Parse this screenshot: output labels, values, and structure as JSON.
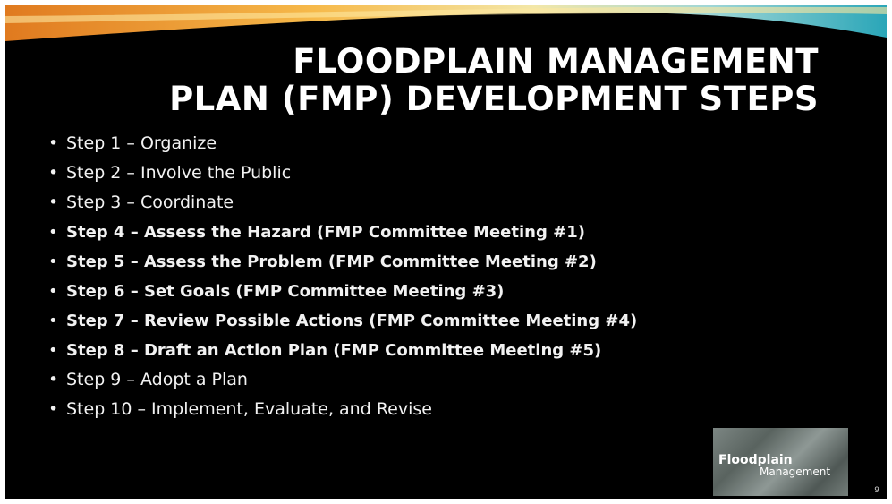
{
  "slide": {
    "title": [
      "FLOODPLAIN MANAGEMENT",
      "PLAN (FMP) DEVELOPMENT STEPS"
    ],
    "bullets": [
      {
        "text": "Step 1 – Organize",
        "bold": false
      },
      {
        "text": "Step 2 – Involve the Public",
        "bold": false
      },
      {
        "text": "Step 3 – Coordinate",
        "bold": false
      },
      {
        "text": "Step 4 – Assess the Hazard (FMP Committee Meeting #1)",
        "bold": true
      },
      {
        "text": "Step 5 – Assess the Problem (FMP Committee Meeting #2)",
        "bold": true
      },
      {
        "text": "Step 6 – Set Goals (FMP Committee Meeting #3)",
        "bold": true
      },
      {
        "text": "Step 7 – Review Possible Actions (FMP Committee Meeting #4)",
        "bold": true
      },
      {
        "text": "Step 8 – Draft an Action Plan (FMP Committee Meeting #5)",
        "bold": true
      },
      {
        "text": "Step 9 – Adopt a Plan",
        "bold": false
      },
      {
        "text": "Step 10 – Implement, Evaluate, and Revise",
        "bold": false
      }
    ],
    "logo": {
      "line1": "Floodplain",
      "line2": "Management"
    },
    "page_number": 9
  }
}
